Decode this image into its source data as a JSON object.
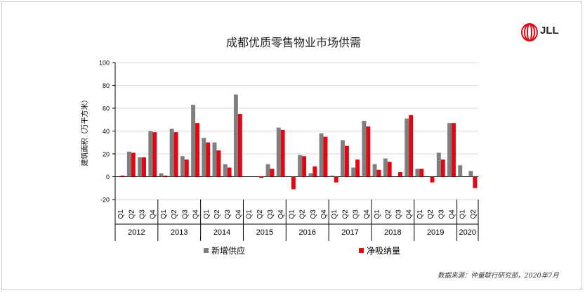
{
  "logo": {
    "text": "JLL",
    "color": "#e30613"
  },
  "source_note": "数据来源：仲量联行研究部，2020年7月",
  "chart_data": {
    "type": "bar",
    "title": "成都优质零售物业市场供需",
    "ylabel": "建筑面积（万平方米）",
    "xlabel": "",
    "ylim": [
      -20,
      100
    ],
    "yticks": [
      -20,
      0,
      20,
      40,
      60,
      80,
      100
    ],
    "grid": true,
    "legend": "bottom",
    "quarters": [
      "Q1",
      "Q2",
      "Q3",
      "Q4",
      "Q1",
      "Q2",
      "Q3",
      "Q4",
      "Q1",
      "Q2",
      "Q3",
      "Q4",
      "Q1",
      "Q2",
      "Q3",
      "Q4",
      "Q1",
      "Q2",
      "Q3",
      "Q4",
      "Q1",
      "Q2",
      "Q3",
      "Q4",
      "Q1",
      "Q2",
      "Q3",
      "Q4",
      "Q1",
      "Q2",
      "Q3",
      "Q4",
      "Q1",
      "Q2"
    ],
    "years": [
      {
        "label": "2012",
        "start": 0,
        "count": 4
      },
      {
        "label": "2013",
        "start": 4,
        "count": 4
      },
      {
        "label": "2014",
        "start": 8,
        "count": 4
      },
      {
        "label": "2015",
        "start": 12,
        "count": 4
      },
      {
        "label": "2016",
        "start": 16,
        "count": 4
      },
      {
        "label": "2017",
        "start": 20,
        "count": 4
      },
      {
        "label": "2018",
        "start": 24,
        "count": 4
      },
      {
        "label": "2019",
        "start": 28,
        "count": 4
      },
      {
        "label": "2020",
        "start": 32,
        "count": 2
      }
    ],
    "series": [
      {
        "name": "新增供应",
        "color": "#7f7f7f",
        "values": [
          0,
          22,
          17,
          40,
          3,
          42,
          18,
          63,
          34,
          30,
          11,
          72,
          0,
          0,
          11,
          43,
          0,
          19,
          3,
          38,
          1,
          32,
          8,
          49,
          11,
          16,
          0,
          51,
          7,
          0,
          21,
          47,
          10,
          5
        ]
      },
      {
        "name": "净吸纳量",
        "color": "#e30613",
        "values": [
          1,
          21,
          17,
          39,
          1,
          39,
          15,
          47,
          30,
          23,
          8,
          55,
          0,
          -1,
          7,
          41,
          -11,
          18,
          9,
          35,
          -5,
          27,
          15,
          44,
          6,
          13,
          4,
          54,
          7,
          -5,
          15,
          47,
          0,
          -10
        ]
      }
    ]
  }
}
